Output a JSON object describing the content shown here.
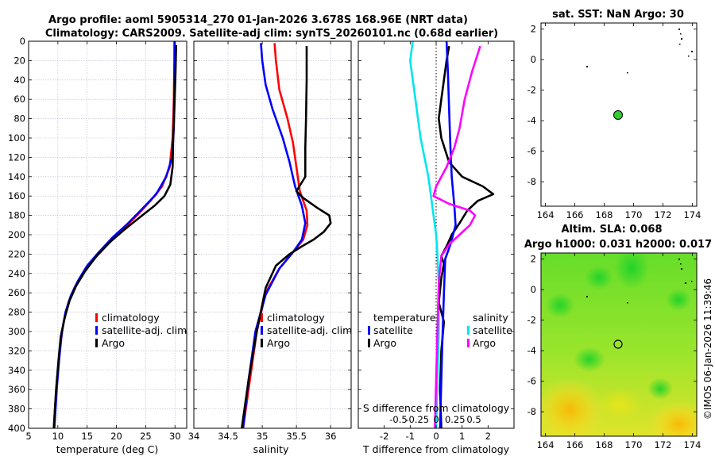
{
  "title_line1": "Argo profile: aoml 5905314_270 01-Jan-2026 3.678S 168.96E (NRT data)",
  "title_line2": "Climatology: CARS2009. Satellite-adj clim: synTS_20260101.nc (0.68d earlier)",
  "footer": "©IMOS 06-Jan-2026 11:39:46",
  "colors": {
    "climatology": "#ff0000",
    "satellite": "#0000ff",
    "argo": "#000000",
    "temp_sat": "#00e5ee",
    "salt_argo": "#ff00ff",
    "map_ocean": "#8ee03a",
    "float_marker": "#33cc33"
  },
  "chart_data": [
    {
      "type": "line",
      "id": "temperature",
      "xlabel": "temperature (deg C)",
      "xlim": [
        5,
        32
      ],
      "ylim": [
        400,
        0
      ],
      "xticks": [
        5,
        10,
        15,
        20,
        25,
        30
      ],
      "yticks": [
        0,
        20,
        40,
        60,
        80,
        100,
        120,
        140,
        160,
        180,
        200,
        220,
        240,
        260,
        280,
        300,
        320,
        340,
        360,
        380,
        400
      ],
      "legend": [
        "climatology",
        "satellite-adj. clim",
        "Argo"
      ],
      "series": [
        {
          "name": "climatology",
          "color": "#ff0000",
          "points": [
            [
              29.9,
              0
            ],
            [
              29.9,
              20
            ],
            [
              29.8,
              60
            ],
            [
              29.6,
              100
            ],
            [
              29.1,
              130
            ],
            [
              27.8,
              150
            ],
            [
              25.8,
              165
            ],
            [
              23.5,
              180
            ],
            [
              21,
              195
            ],
            [
              18.5,
              210
            ],
            [
              16.2,
              225
            ],
            [
              14.2,
              240
            ],
            [
              12.8,
              255
            ],
            [
              11.8,
              270
            ],
            [
              11,
              290
            ],
            [
              10.5,
              310
            ],
            [
              10,
              340
            ],
            [
              9.6,
              370
            ],
            [
              9.3,
              400
            ]
          ]
        },
        {
          "name": "satellite-adj. clim",
          "color": "#0000ff",
          "points": [
            [
              29.95,
              0
            ],
            [
              29.9,
              40
            ],
            [
              29.8,
              90
            ],
            [
              29.5,
              120
            ],
            [
              28.5,
              140
            ],
            [
              26.8,
              158
            ],
            [
              24.6,
              172
            ],
            [
              22,
              188
            ],
            [
              19.3,
              203
            ],
            [
              17,
              218
            ],
            [
              15,
              232
            ],
            [
              13.4,
              248
            ],
            [
              12.2,
              263
            ],
            [
              11.3,
              280
            ],
            [
              10.7,
              300
            ],
            [
              10.2,
              330
            ],
            [
              9.8,
              360
            ],
            [
              9.4,
              400
            ]
          ]
        },
        {
          "name": "Argo",
          "color": "#000000",
          "points": [
            [
              30.2,
              4
            ],
            [
              30.1,
              30
            ],
            [
              29.9,
              70
            ],
            [
              29.7,
              100
            ],
            [
              29.6,
              130
            ],
            [
              29.2,
              148
            ],
            [
              28.2,
              160
            ],
            [
              26.5,
              170
            ],
            [
              24,
              182
            ],
            [
              21.5,
              194
            ],
            [
              19,
              207
            ],
            [
              16.6,
              222
            ],
            [
              14.6,
              238
            ],
            [
              13.1,
              253
            ],
            [
              12,
              268
            ],
            [
              11.2,
              285
            ],
            [
              10.5,
              305
            ],
            [
              10.1,
              330
            ],
            [
              9.7,
              360
            ],
            [
              9.3,
              400
            ]
          ]
        }
      ]
    },
    {
      "type": "line",
      "id": "salinity",
      "xlabel": "salinity",
      "xlim": [
        34,
        36.3
      ],
      "ylim": [
        400,
        0
      ],
      "xticks": [
        34,
        34.5,
        35,
        35.5,
        36
      ],
      "legend": [
        "climatology",
        "satellite-adj. clim",
        "Argo"
      ],
      "series": [
        {
          "name": "climatology",
          "color": "#ff0000",
          "points": [
            [
              35.18,
              2
            ],
            [
              35.2,
              20
            ],
            [
              35.25,
              50
            ],
            [
              35.37,
              80
            ],
            [
              35.45,
              105
            ],
            [
              35.5,
              130
            ],
            [
              35.55,
              155
            ],
            [
              35.65,
              175
            ],
            [
              35.66,
              190
            ],
            [
              35.6,
              205
            ],
            [
              35.45,
              218
            ],
            [
              35.25,
              235
            ],
            [
              35.05,
              260
            ],
            [
              34.92,
              300
            ],
            [
              34.82,
              350
            ],
            [
              34.72,
              400
            ]
          ]
        },
        {
          "name": "satellite-adj. clim",
          "color": "#0000ff",
          "points": [
            [
              34.98,
              2
            ],
            [
              35.0,
              20
            ],
            [
              35.05,
              45
            ],
            [
              35.15,
              70
            ],
            [
              35.3,
              100
            ],
            [
              35.4,
              125
            ],
            [
              35.48,
              150
            ],
            [
              35.58,
              170
            ],
            [
              35.63,
              188
            ],
            [
              35.58,
              205
            ],
            [
              35.45,
              218
            ],
            [
              35.25,
              235
            ],
            [
              35.05,
              262
            ],
            [
              34.9,
              300
            ],
            [
              34.8,
              350
            ],
            [
              34.72,
              400
            ]
          ]
        },
        {
          "name": "Argo",
          "color": "#000000",
          "points": [
            [
              35.65,
              5
            ],
            [
              35.65,
              40
            ],
            [
              35.64,
              80
            ],
            [
              35.63,
              110
            ],
            [
              35.63,
              140
            ],
            [
              35.5,
              155
            ],
            [
              35.6,
              162
            ],
            [
              35.8,
              172
            ],
            [
              35.98,
              180
            ],
            [
              36.0,
              188
            ],
            [
              35.9,
              197
            ],
            [
              35.75,
              205
            ],
            [
              35.58,
              212
            ],
            [
              35.4,
              220
            ],
            [
              35.2,
              232
            ],
            [
              35.05,
              255
            ],
            [
              34.92,
              300
            ],
            [
              34.8,
              350
            ],
            [
              34.7,
              400
            ]
          ]
        }
      ]
    },
    {
      "type": "line",
      "id": "difference",
      "xlabel": "T difference from climatology",
      "xlabel_top": "S difference from climatology",
      "xlim": [
        -3,
        3
      ],
      "ylim": [
        400,
        0
      ],
      "xticks": [
        -2,
        -1,
        0,
        1,
        2
      ],
      "top_ticks": [
        -0.5,
        -0.25,
        0,
        0.25,
        0.5
      ],
      "legend_left_title": "temperature",
      "legend_right_title": "salinity",
      "legend": [
        "satellite",
        "Argo"
      ],
      "series": [
        {
          "name": "temperature satellite",
          "color": "#00e5ee",
          "points": [
            [
              -0.9,
              0
            ],
            [
              -1.0,
              20
            ],
            [
              -0.9,
              40
            ],
            [
              -0.8,
              60
            ],
            [
              -0.7,
              80
            ],
            [
              -0.6,
              100
            ],
            [
              -0.45,
              120
            ],
            [
              -0.3,
              140
            ],
            [
              -0.2,
              160
            ],
            [
              -0.1,
              180
            ],
            [
              0,
              200
            ],
            [
              0.05,
              220
            ],
            [
              0.1,
              250
            ],
            [
              0.1,
              300
            ],
            [
              0.05,
              350
            ],
            [
              0,
              400
            ]
          ]
        },
        {
          "name": "temperature Argo",
          "color": "#000000",
          "points": [
            [
              0.5,
              5
            ],
            [
              0.4,
              20
            ],
            [
              0.3,
              40
            ],
            [
              0.2,
              60
            ],
            [
              0.1,
              80
            ],
            [
              0.2,
              100
            ],
            [
              0.5,
              125
            ],
            [
              1.0,
              140
            ],
            [
              1.8,
              150
            ],
            [
              2.2,
              158
            ],
            [
              1.6,
              165
            ],
            [
              1.2,
              175
            ],
            [
              0.9,
              188
            ],
            [
              0.6,
              200
            ],
            [
              0.4,
              212
            ],
            [
              0.2,
              222
            ],
            [
              0.3,
              230
            ],
            [
              0.2,
              245
            ],
            [
              0.1,
              270
            ],
            [
              0.3,
              290
            ],
            [
              0.2,
              320
            ],
            [
              0.15,
              360
            ],
            [
              0.2,
              400
            ]
          ]
        },
        {
          "name": "salinity satellite",
          "color": "#0000ff",
          "points": [
            [
              0.4,
              0
            ],
            [
              0.45,
              30
            ],
            [
              0.5,
              70
            ],
            [
              0.55,
              110
            ],
            [
              0.6,
              140
            ],
            [
              0.7,
              170
            ],
            [
              0.75,
              190
            ],
            [
              0.55,
              210
            ],
            [
              0.35,
              225
            ],
            [
              0.3,
              260
            ],
            [
              0.25,
              300
            ],
            [
              0.2,
              350
            ],
            [
              0.15,
              400
            ]
          ]
        },
        {
          "name": "salinity Argo",
          "color": "#ff00ff",
          "points": [
            [
              1.7,
              5
            ],
            [
              1.4,
              30
            ],
            [
              1.1,
              60
            ],
            [
              0.9,
              90
            ],
            [
              0.7,
              110
            ],
            [
              0.4,
              130
            ],
            [
              0.0,
              150
            ],
            [
              -0.1,
              160
            ],
            [
              0.5,
              168
            ],
            [
              1.3,
              175
            ],
            [
              1.5,
              180
            ],
            [
              1.3,
              190
            ],
            [
              0.9,
              200
            ],
            [
              0.5,
              210
            ],
            [
              0.2,
              222
            ],
            [
              0.1,
              250
            ],
            [
              0.05,
              300
            ],
            [
              0.0,
              350
            ],
            [
              -0.05,
              400
            ]
          ]
        }
      ]
    },
    {
      "type": "scatter",
      "id": "sst_map",
      "title": "sat. SST: NaN Argo: 30",
      "xlim": [
        163.7,
        174.3
      ],
      "ylim": [
        -9.6,
        2.4
      ],
      "xticks": [
        164,
        166,
        168,
        170,
        172,
        174
      ],
      "yticks": [
        2,
        0,
        -2,
        -4,
        -6,
        -8
      ],
      "float_position": [
        168.96,
        -3.678
      ]
    },
    {
      "type": "heatmap",
      "id": "sla_map",
      "title_line1": "Altim. SLA: 0.068",
      "title_line2": "Argo h1000: 0.031 h2000: 0.017",
      "xlim": [
        163.7,
        174.3
      ],
      "ylim": [
        -9.6,
        2.4
      ],
      "xticks": [
        164,
        166,
        168,
        170,
        172,
        174
      ],
      "yticks": [
        2,
        0,
        -2,
        -4,
        -6,
        -8
      ],
      "float_position": [
        168.96,
        -3.678
      ]
    }
  ]
}
